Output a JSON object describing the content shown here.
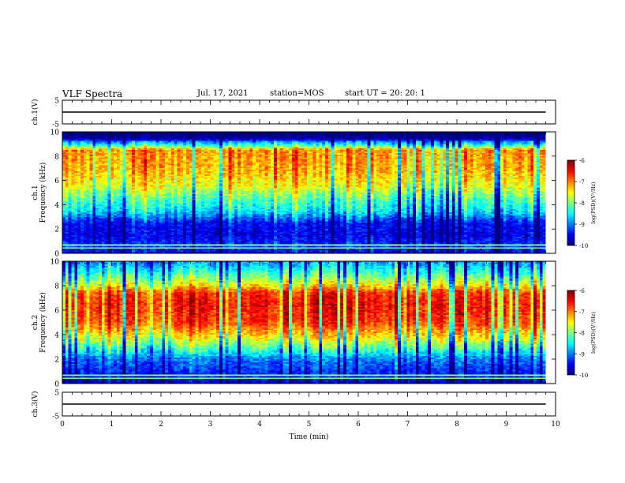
{
  "header": {
    "title": "VLF Spectra",
    "date": "Jul. 17, 2021",
    "station": "station=MOS",
    "start": "start UT =  20: 20: 1"
  },
  "chart_data": [
    {
      "type": "line",
      "panel": "ch.1 waveform",
      "ylabel": "ch.1(V)",
      "yticks": [
        "5",
        "-5"
      ],
      "ylim": [
        -5,
        5
      ],
      "x": [
        0,
        9.8
      ],
      "values": [
        0,
        0
      ]
    },
    {
      "type": "heatmap",
      "panel": "ch.1 spectrogram",
      "ylabel_top": "ch.1",
      "ylabel": "Frequency (kHz)",
      "yticks": [
        "0",
        "2",
        "4",
        "6",
        "8",
        "10"
      ],
      "ylim": [
        0,
        10
      ],
      "xlim": [
        0,
        9.8
      ],
      "colorbar": {
        "label": "log(PSD)(V²/Hz)",
        "ticks": [
          "-6",
          "-7",
          "-8",
          "-9",
          "-10"
        ],
        "range": [
          -10,
          -6
        ]
      },
      "profile_khz_logpsd": [
        [
          0,
          -9.6
        ],
        [
          0.5,
          -9.3
        ],
        [
          1.5,
          -9.6
        ],
        [
          2.5,
          -9.5
        ],
        [
          3.5,
          -8.6
        ],
        [
          4.5,
          -8.2
        ],
        [
          5.5,
          -7.6
        ],
        [
          7,
          -7.2
        ],
        [
          8.5,
          -7.1
        ],
        [
          9,
          -8.6
        ],
        [
          9.5,
          -9.6
        ],
        [
          10,
          -9.8
        ]
      ]
    },
    {
      "type": "heatmap",
      "panel": "ch.2 spectrogram",
      "ylabel_top": "ch.2",
      "ylabel": "Frequency (kHz)",
      "yticks": [
        "0",
        "2",
        "4",
        "6",
        "8",
        "10"
      ],
      "ylim": [
        0,
        10
      ],
      "xlim": [
        0,
        9.8
      ],
      "colorbar": {
        "label": "log(PSD)(V²/Hz)",
        "ticks": [
          "-6",
          "-7",
          "-8",
          "-9",
          "-10"
        ],
        "range": [
          -10,
          -6
        ]
      },
      "profile_khz_logpsd": [
        [
          0,
          -9.7
        ],
        [
          1,
          -9.3
        ],
        [
          2,
          -9.0
        ],
        [
          3,
          -8.1
        ],
        [
          4,
          -7.3
        ],
        [
          5,
          -6.7
        ],
        [
          6.5,
          -6.5
        ],
        [
          7.5,
          -6.7
        ],
        [
          8,
          -7.4
        ],
        [
          9,
          -8.2
        ],
        [
          10,
          -8.9
        ]
      ]
    },
    {
      "type": "line",
      "panel": "ch.3 waveform",
      "ylabel": "ch.3(V)",
      "yticks": [
        "5",
        "-5"
      ],
      "ylim": [
        -5,
        5
      ],
      "x": [
        0,
        9.8
      ],
      "values": [
        0,
        0
      ]
    }
  ],
  "xaxis": {
    "label": "Time (min)",
    "ticks": [
      "0",
      "1",
      "2",
      "3",
      "4",
      "5",
      "6",
      "7",
      "8",
      "9",
      "10"
    ],
    "range": [
      0,
      10
    ]
  }
}
